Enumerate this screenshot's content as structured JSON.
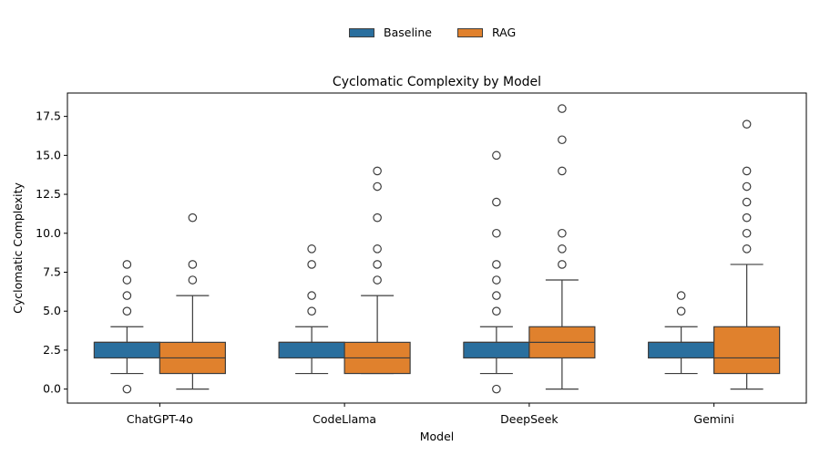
{
  "chart_data": {
    "type": "box",
    "title": "Cyclomatic Complexity by Model",
    "xlabel": "Model",
    "ylabel": "Cyclomatic Complexity",
    "ylim": [
      -0.9,
      19.0
    ],
    "yticks": [
      0.0,
      2.5,
      5.0,
      7.5,
      10.0,
      12.5,
      15.0,
      17.5
    ],
    "ytick_labels": [
      "0.0",
      "2.5",
      "5.0",
      "7.5",
      "10.0",
      "12.5",
      "15.0",
      "17.5"
    ],
    "categories": [
      "ChatGPT-4o",
      "CodeLlama",
      "DeepSeek",
      "Gemini"
    ],
    "grid": false,
    "legend_position": "top-center",
    "series": [
      {
        "name": "Baseline",
        "color": "#2a6f9e",
        "boxes": [
          {
            "whislo": 1,
            "q1": 2,
            "med": 3,
            "q3": 3,
            "whishi": 4,
            "fliers": [
              0,
              5,
              6,
              7,
              8
            ]
          },
          {
            "whislo": 1,
            "q1": 2,
            "med": 3,
            "q3": 3,
            "whishi": 4,
            "fliers": [
              5,
              6,
              8,
              9
            ]
          },
          {
            "whislo": 1,
            "q1": 2,
            "med": 3,
            "q3": 3,
            "whishi": 4,
            "fliers": [
              0,
              5,
              6,
              7,
              8,
              10,
              12,
              15
            ]
          },
          {
            "whislo": 1,
            "q1": 2,
            "med": 3,
            "q3": 3,
            "whishi": 4,
            "fliers": [
              5,
              6
            ]
          }
        ]
      },
      {
        "name": "RAG",
        "color": "#e0812d",
        "boxes": [
          {
            "whislo": 0,
            "q1": 1,
            "med": 2,
            "q3": 3,
            "whishi": 6,
            "fliers": [
              7,
              8,
              11
            ]
          },
          {
            "whislo": 1,
            "q1": 1,
            "med": 2,
            "q3": 3,
            "whishi": 6,
            "fliers": [
              7,
              8,
              9,
              11,
              13,
              14
            ]
          },
          {
            "whislo": 0,
            "q1": 2,
            "med": 3,
            "q3": 4,
            "whishi": 7,
            "fliers": [
              8,
              9,
              10,
              14,
              16,
              18
            ]
          },
          {
            "whislo": 0,
            "q1": 1,
            "med": 2,
            "q3": 4,
            "whishi": 8,
            "fliers": [
              9,
              10,
              11,
              12,
              13,
              14,
              17
            ]
          }
        ]
      }
    ]
  }
}
